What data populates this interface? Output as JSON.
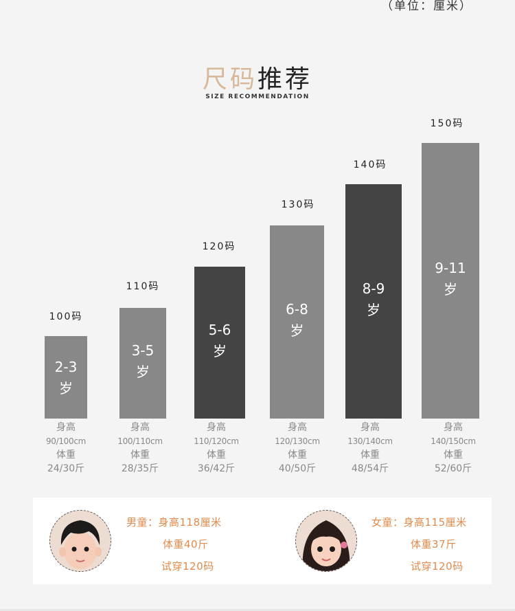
{
  "unit_note": "（单位：厘米）",
  "title_part1": "尺码",
  "title_part2": "推荐",
  "subtitle": "SIZE RECOMMENDATION",
  "colors": {
    "light_bar": "#888888",
    "dark_bar": "#444444",
    "accent": "#e08a4b",
    "title_accent": "#d8b89a"
  },
  "sizes": [
    {
      "size": "100码",
      "age": "2-3",
      "age_unit": "岁",
      "height_label": "身高",
      "height": "90/100cm",
      "weight_label": "体重",
      "weight": "24/30斤"
    },
    {
      "size": "110码",
      "age": "3-5",
      "age_unit": "岁",
      "height_label": "身高",
      "height": "100/110cm",
      "weight_label": "体重",
      "weight": "28/35斤"
    },
    {
      "size": "120码",
      "age": "5-6",
      "age_unit": "岁",
      "height_label": "身高",
      "height": "110/120cm",
      "weight_label": "体重",
      "weight": "36/42斤"
    },
    {
      "size": "130码",
      "age": "6-8",
      "age_unit": "岁",
      "height_label": "身高",
      "height": "120/130cm",
      "weight_label": "体重",
      "weight": "40/50斤"
    },
    {
      "size": "140码",
      "age": "8-9",
      "age_unit": "岁",
      "height_label": "身高",
      "height": "130/140cm",
      "weight_label": "体重",
      "weight": "48/54斤"
    },
    {
      "size": "150码",
      "age": "9-11",
      "age_unit": "岁",
      "height_label": "身高",
      "height": "140/150cm",
      "weight_label": "体重",
      "weight": "52/60斤"
    }
  ],
  "models": {
    "boy": {
      "line1": "男童：身高118厘米",
      "line2": "体重40斤",
      "line3": "试穿120码"
    },
    "girl": {
      "line1": "女童：身高115厘米",
      "line2": "体重37斤",
      "line3": "试穿120码"
    }
  }
}
